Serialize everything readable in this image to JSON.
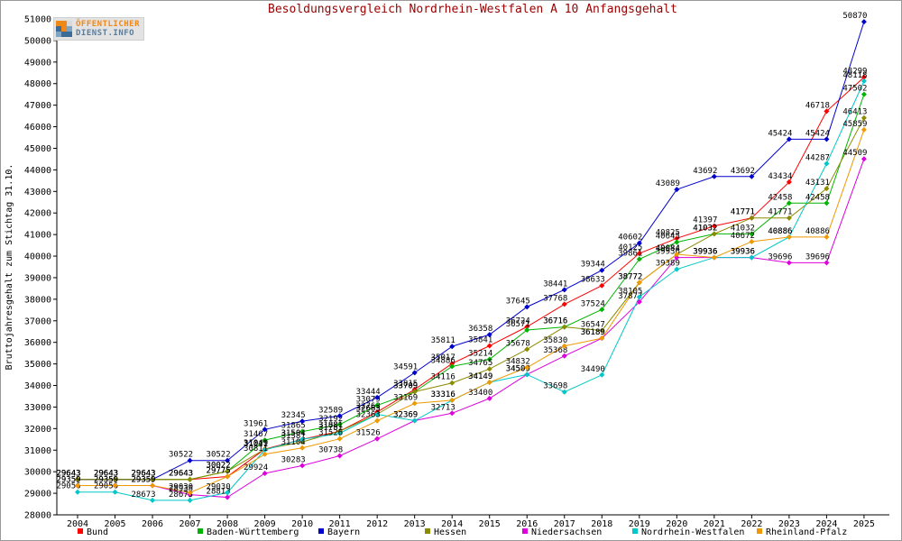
{
  "logo": {
    "line1": "ÖFFENTLICHER",
    "line2": "DIENST.INFO"
  },
  "colors": {
    "title": "#990000",
    "axis_text": "#000000",
    "value_label_text": "#000000",
    "background": "#ffffff",
    "frame_border": "#9a9a9a"
  },
  "chart_data": {
    "type": "line",
    "title": "Besoldungsvergleich Nordrhein-Westfalen A 10 Anfangsgehalt",
    "xlabel": "",
    "ylabel": "Bruttojahresgehalt zum Stichtag 31.10.",
    "ylim": [
      28000,
      51000
    ],
    "ytick_step": 1000,
    "grid": false,
    "legend_position": "bottom",
    "point_labels": true,
    "categories": [
      2004,
      2005,
      2006,
      2007,
      2008,
      2009,
      2010,
      2011,
      2012,
      2013,
      2014,
      2015,
      2016,
      2017,
      2018,
      2019,
      2020,
      2021,
      2022,
      2023,
      2024,
      2025
    ],
    "series": [
      {
        "name": "Bund",
        "color": "#ff0000",
        "values": [
          29643,
          29643,
          29643,
          29643,
          29775,
          31049,
          31504,
          31881,
          32768,
          33815,
          35017,
          35841,
          36724,
          37768,
          38633,
          40125,
          40825,
          41397,
          41771,
          43434,
          46718,
          48299
        ]
      },
      {
        "name": "Baden-Württemberg",
        "color": "#00b400",
        "values": [
          29643,
          29643,
          29643,
          29643,
          30022,
          31467,
          31865,
          32192,
          33079,
          33709,
          34886,
          35214,
          36571,
          36716,
          37524,
          39861,
          40645,
          41032,
          41032,
          42458,
          42458,
          47502
        ]
      },
      {
        "name": "Bayern",
        "color": "#0000cc",
        "values": [
          29643,
          29643,
          29643,
          30522,
          30522,
          31961,
          32345,
          32589,
          33444,
          34591,
          35811,
          36358,
          37645,
          38441,
          39344,
          40602,
          43089,
          43692,
          43692,
          45424,
          45424,
          50870
        ]
      },
      {
        "name": "Hessen",
        "color": "#8b8b00",
        "values": [
          29643,
          29643,
          29643,
          29643,
          30022,
          31049,
          31381,
          31881,
          32663,
          33709,
          34116,
          34765,
          35678,
          36716,
          36547,
          38772,
          40084,
          41032,
          41771,
          41771,
          43131,
          46413
        ]
      },
      {
        "name": "Niedersachsen",
        "color": "#dd00dd",
        "values": [
          29359,
          29359,
          29359,
          28938,
          28813,
          29924,
          30283,
          30738,
          31526,
          32369,
          32713,
          33400,
          34509,
          35368,
          36189,
          37877,
          39936,
          39936,
          39936,
          39696,
          39696,
          44509
        ]
      },
      {
        "name": "Nordrhein-Westfalen",
        "color": "#00c8c8",
        "values": [
          29056,
          29056,
          28673,
          28673,
          29030,
          31011,
          31504,
          31781,
          32663,
          32369,
          33316,
          34149,
          34509,
          33698,
          34490,
          38105,
          39389,
          39936,
          39936,
          40886,
          44287,
          48118
        ]
      },
      {
        "name": "Rheinland-Pfalz",
        "color": "#ee9900",
        "values": [
          29359,
          29359,
          29359,
          29030,
          29775,
          30811,
          31104,
          31526,
          32363,
          33169,
          33316,
          34149,
          34832,
          35830,
          36189,
          38772,
          40084,
          39936,
          40672,
          40886,
          40886,
          45859
        ]
      }
    ]
  }
}
